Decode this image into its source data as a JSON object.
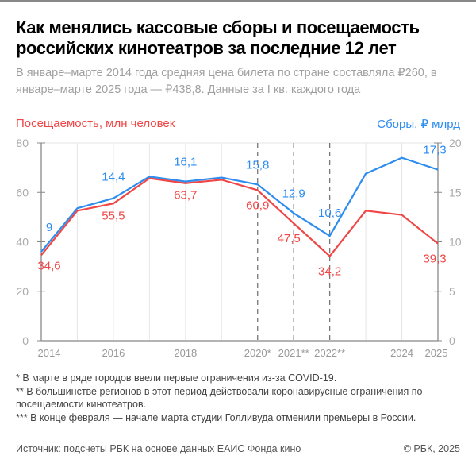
{
  "title": "Как менялись кассовые сборы и посещаемость российских кинотеатров за последние 12 лет",
  "subtitle": "В январе–марте 2014 года средняя цена билета по стране составляла ₽260, в январе–марте 2025 года — ₽438,8. Данные за I кв. каждого года",
  "notes": [
    "* В марте в ряде городов ввели первые ограничения из-за COVID-19.",
    "** В большинстве регионов в этот период действовали коронавирусные ограничения по посещаемости кинотеатров.",
    "*** В конце февраля — начале марта студии Голливуда отменили премьеры в России."
  ],
  "source": "Источник: подсчеты РБК на основе данных ЕАИС Фонда кино",
  "copyright": "© РБК, 2025",
  "chart_data": {
    "type": "line",
    "x": [
      2014,
      2015,
      2016,
      2017,
      2018,
      2019,
      2020,
      2021,
      2022,
      2023,
      2024,
      2025
    ],
    "xtick_labels": [
      "2014",
      "",
      "2016",
      "",
      "2018",
      "",
      "2020*",
      "2021**",
      "2022**",
      "",
      "2024",
      "2025"
    ],
    "dashed_years": [
      2020,
      2021,
      2022
    ],
    "left_axis": {
      "label": "Посещаемость, млн человек",
      "ylim": [
        0,
        80
      ],
      "ticks": [
        "0",
        "20",
        "40",
        "60",
        "80"
      ]
    },
    "right_axis": {
      "label": "Сборы, ₽ млрд",
      "ylim": [
        0,
        20
      ],
      "ticks": [
        "0",
        "5",
        "10",
        "15",
        "20"
      ]
    },
    "grid": true,
    "series": [
      {
        "name": "Посещаемость, млн человек",
        "axis": "left",
        "color": "#f04646",
        "values": [
          34.6,
          52.6,
          55.5,
          65.7,
          63.7,
          65.1,
          60.9,
          47.5,
          34.2,
          52.6,
          50.9,
          39.3
        ],
        "labels": [
          "34,6",
          "",
          "55,5",
          "",
          "63,7",
          "",
          "60,9",
          "47,5",
          "34,2",
          "",
          "",
          "39,3"
        ]
      },
      {
        "name": "Сборы, ₽ млрд",
        "axis": "right",
        "color": "#2d8cf0",
        "values": [
          9,
          13.4,
          14.4,
          16.6,
          16.1,
          16.5,
          15.8,
          12.9,
          10.6,
          16.9,
          18.5,
          17.3
        ],
        "labels": [
          "9",
          "",
          "14,4",
          "",
          "16,1",
          "",
          "15,8",
          "12,9",
          "10,6",
          "",
          "",
          "17,3"
        ]
      }
    ]
  }
}
